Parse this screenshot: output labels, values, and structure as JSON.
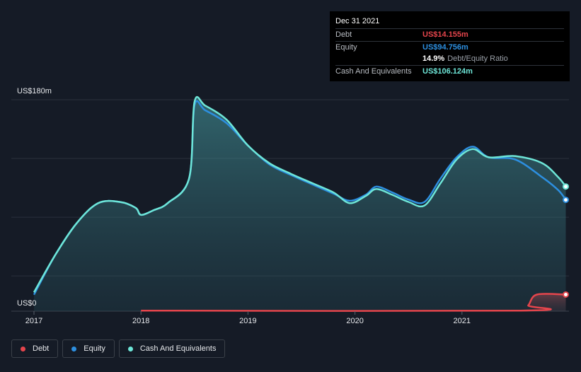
{
  "chart_data": {
    "type": "area",
    "y_axis": {
      "top_label": "US$180m",
      "bottom_label": "US$0",
      "ylim": [
        0,
        180
      ]
    },
    "x_axis": {
      "ticks": [
        "2017",
        "2018",
        "2019",
        "2020",
        "2021"
      ],
      "xlim": [
        2017.0,
        2022.0
      ]
    },
    "series": [
      {
        "name": "Cash And Equivalents",
        "color": "#6ee6d8",
        "points": [
          [
            2017.0,
            16
          ],
          [
            2017.2,
            48
          ],
          [
            2017.4,
            75
          ],
          [
            2017.6,
            92
          ],
          [
            2017.8,
            93
          ],
          [
            2017.95,
            88
          ],
          [
            2018.0,
            82
          ],
          [
            2018.12,
            86
          ],
          [
            2018.25,
            92
          ],
          [
            2018.45,
            113
          ],
          [
            2018.5,
            178
          ],
          [
            2018.6,
            175
          ],
          [
            2018.8,
            163
          ],
          [
            2019.0,
            141
          ],
          [
            2019.2,
            126
          ],
          [
            2019.4,
            117
          ],
          [
            2019.6,
            109
          ],
          [
            2019.8,
            101
          ],
          [
            2019.95,
            92
          ],
          [
            2020.1,
            98
          ],
          [
            2020.2,
            104
          ],
          [
            2020.35,
            99
          ],
          [
            2020.5,
            93
          ],
          [
            2020.65,
            90
          ],
          [
            2020.8,
            109
          ],
          [
            2020.95,
            129
          ],
          [
            2021.1,
            138
          ],
          [
            2021.25,
            131
          ],
          [
            2021.5,
            132
          ],
          [
            2021.75,
            126
          ],
          [
            2021.9,
            114
          ],
          [
            2021.97,
            106.124
          ]
        ]
      },
      {
        "name": "Equity",
        "color": "#2d8fe0",
        "points": [
          [
            2017.0,
            14
          ],
          [
            2017.2,
            48
          ],
          [
            2017.4,
            75
          ],
          [
            2017.6,
            92
          ],
          [
            2017.8,
            93
          ],
          [
            2017.95,
            88
          ],
          [
            2018.0,
            82
          ],
          [
            2018.12,
            86
          ],
          [
            2018.25,
            92
          ],
          [
            2018.45,
            113
          ],
          [
            2018.5,
            175
          ],
          [
            2018.6,
            171
          ],
          [
            2018.8,
            160
          ],
          [
            2019.0,
            141
          ],
          [
            2019.2,
            125
          ],
          [
            2019.4,
            116
          ],
          [
            2019.6,
            108
          ],
          [
            2019.8,
            100
          ],
          [
            2019.95,
            94
          ],
          [
            2020.1,
            99
          ],
          [
            2020.2,
            106
          ],
          [
            2020.35,
            101
          ],
          [
            2020.5,
            95
          ],
          [
            2020.65,
            93
          ],
          [
            2020.8,
            113
          ],
          [
            2020.95,
            131
          ],
          [
            2021.1,
            140
          ],
          [
            2021.25,
            131
          ],
          [
            2021.5,
            129
          ],
          [
            2021.75,
            114
          ],
          [
            2021.9,
            103
          ],
          [
            2021.97,
            94.756
          ]
        ]
      },
      {
        "name": "Debt",
        "color": "#e5454c",
        "points": [
          [
            2018.0,
            0.5
          ],
          [
            2021.55,
            0.5
          ],
          [
            2021.62,
            5
          ],
          [
            2021.7,
            14.155
          ],
          [
            2021.97,
            14.155
          ]
        ]
      }
    ]
  },
  "tooltip": {
    "date": "Dec 31 2021",
    "debt_label": "Debt",
    "debt_value": "US$14.155m",
    "equity_label": "Equity",
    "equity_value": "US$94.756m",
    "ratio_value": "14.9%",
    "ratio_text": "Debt/Equity Ratio",
    "cash_label": "Cash And Equivalents",
    "cash_value": "US$106.124m"
  },
  "legend": {
    "debt": "Debt",
    "equity": "Equity",
    "cash": "Cash And Equivalents"
  },
  "colors": {
    "debt": "#e5454c",
    "equity": "#2d8fe0",
    "cash": "#6ee6d8",
    "background": "#151b26"
  }
}
